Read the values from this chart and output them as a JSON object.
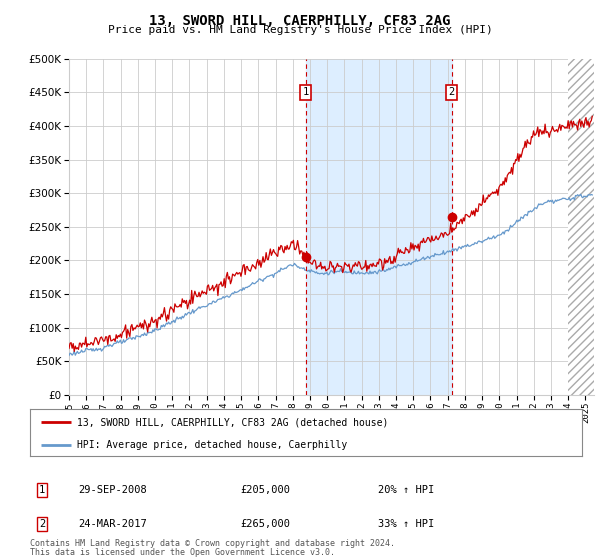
{
  "title": "13, SWORD HILL, CAERPHILLY, CF83 2AG",
  "subtitle": "Price paid vs. HM Land Registry's House Price Index (HPI)",
  "ylim": [
    0,
    500000
  ],
  "yticks": [
    0,
    50000,
    100000,
    150000,
    200000,
    250000,
    300000,
    350000,
    400000,
    450000,
    500000
  ],
  "xlim_start": 1995.0,
  "xlim_end": 2025.5,
  "sale1_x": 2008.75,
  "sale1_y": 205000,
  "sale1_label": "1",
  "sale1_date": "29-SEP-2008",
  "sale1_price": "£205,000",
  "sale1_hpi": "20% ↑ HPI",
  "sale2_x": 2017.23,
  "sale2_y": 265000,
  "sale2_label": "2",
  "sale2_date": "24-MAR-2017",
  "sale2_price": "£265,000",
  "sale2_hpi": "33% ↑ HPI",
  "hatch_start_x": 2024.0,
  "legend_line1": "13, SWORD HILL, CAERPHILLY, CF83 2AG (detached house)",
  "legend_line2": "HPI: Average price, detached house, Caerphilly",
  "footer1": "Contains HM Land Registry data © Crown copyright and database right 2024.",
  "footer2": "This data is licensed under the Open Government Licence v3.0.",
  "red_color": "#cc0000",
  "blue_color": "#6699cc",
  "shading_color": "#ddeeff",
  "hatch_color": "#dddddd",
  "grid_color": "#cccccc",
  "background_color": "#ffffff"
}
